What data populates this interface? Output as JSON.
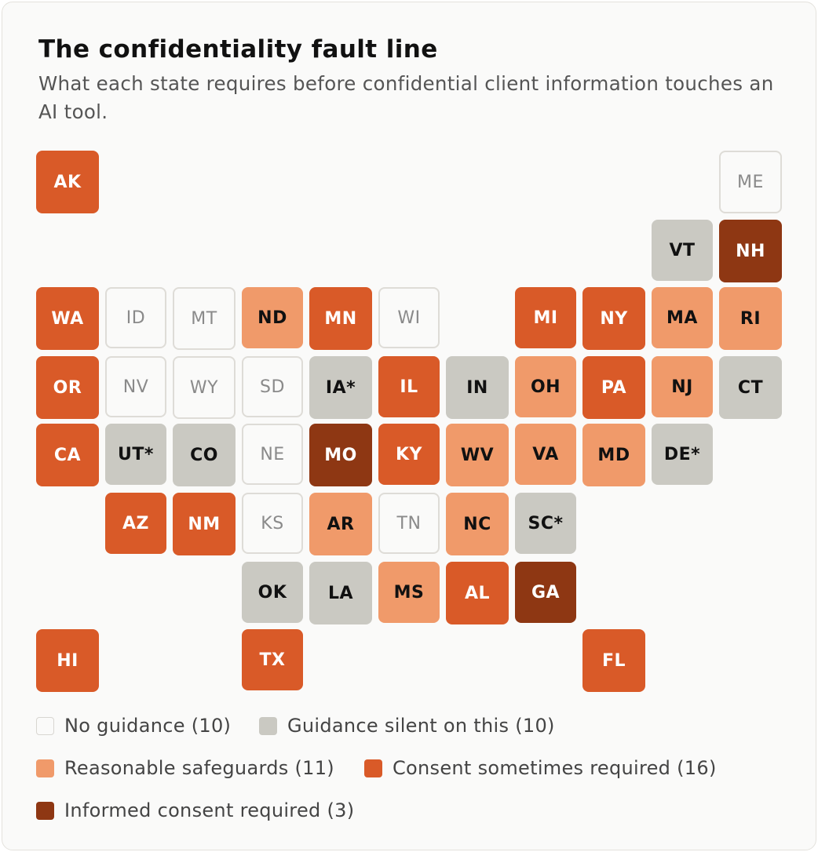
{
  "header": {
    "title": "The confidentiality fault line",
    "subtitle": "What each state requires before confidential client information touches an AI tool."
  },
  "colors": {
    "none_bg": "#fafaf9",
    "silent": "#cac9c2",
    "reasonable": "#f09a6a",
    "some_consent": "#d95a28",
    "informed_consent": "#8e3713"
  },
  "categories": {
    "none": "No guidance (10)",
    "silent": "Guidance silent on this (10)",
    "reasonable": "Reasonable safeguards (11)",
    "some": "Consent sometimes required (16)",
    "informed": "Informed consent required (3)"
  },
  "states": {
    "AK": "AK",
    "ME": "ME",
    "VT": "VT",
    "NH": "NH",
    "WA": "WA",
    "ID": "ID",
    "MT": "MT",
    "ND": "ND",
    "MN": "MN",
    "WI": "WI",
    "MI": "MI",
    "NY": "NY",
    "MA": "MA",
    "RI": "RI",
    "OR": "OR",
    "NV": "NV",
    "WY": "WY",
    "SD": "SD",
    "IA": "IA*",
    "IL": "IL",
    "IN": "IN",
    "OH": "OH",
    "PA": "PA",
    "NJ": "NJ",
    "CT": "CT",
    "CA": "CA",
    "UT": "UT*",
    "CO": "CO",
    "NE": "NE",
    "MO": "MO",
    "KY": "KY",
    "WV": "WV",
    "VA": "VA",
    "MD": "MD",
    "DE": "DE*",
    "AZ": "AZ",
    "NM": "NM",
    "KS": "KS",
    "AR": "AR",
    "TN": "TN",
    "NC": "NC",
    "SC": "SC*",
    "OK": "OK",
    "LA": "LA",
    "MS": "MS",
    "AL": "AL",
    "GA": "GA",
    "HI": "HI",
    "TX": "TX",
    "FL": "FL"
  }
}
